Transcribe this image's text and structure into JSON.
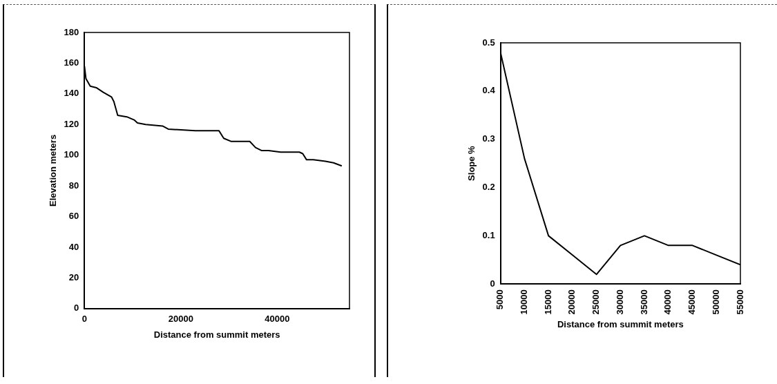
{
  "chart_data": [
    {
      "type": "line",
      "xlabel": "Distance from summit meters",
      "ylabel": "Elevation meters",
      "xlim": [
        0,
        55000
      ],
      "xticks": [
        0,
        20000,
        40000
      ],
      "ylim": [
        0,
        180
      ],
      "yticks": [
        0,
        20,
        40,
        60,
        80,
        100,
        120,
        140,
        160,
        180
      ],
      "grid": false,
      "legend": false,
      "marker": "none",
      "line_style": "solid",
      "series": [
        {
          "color": "#000000",
          "x": [
            0,
            300,
            1200,
            2450,
            3900,
            5600,
            6100,
            6900,
            8800,
            10300,
            11000,
            12700,
            16200,
            17400,
            23000,
            23500,
            27900,
            28900,
            30400,
            34300,
            35500,
            36800,
            38200,
            40700,
            44600,
            45300,
            46100,
            47500,
            50000,
            51700,
            53400
          ],
          "values": [
            158,
            150,
            145,
            144,
            141,
            138,
            135,
            126,
            125,
            123,
            121,
            120,
            119,
            117,
            116,
            116,
            116,
            111,
            109,
            109,
            105,
            103,
            103,
            102,
            102,
            101,
            97,
            97,
            96,
            95,
            93
          ]
        }
      ]
    },
    {
      "type": "line",
      "xlabel": "Distance from summit meters",
      "ylabel": "Slope %",
      "xlim": [
        5000,
        55000
      ],
      "xticks": [
        5000,
        10000,
        15000,
        20000,
        25000,
        30000,
        35000,
        40000,
        45000,
        50000,
        55000
      ],
      "ylim": [
        0,
        0.5
      ],
      "yticks": [
        0,
        0.1,
        0.2,
        0.3,
        0.4,
        0.5
      ],
      "grid": false,
      "legend": false,
      "marker": "none",
      "line_style": "solid",
      "series": [
        {
          "color": "#000000",
          "x": [
            5000,
            10000,
            15000,
            20000,
            25000,
            30000,
            35000,
            40000,
            45000,
            50000,
            55000
          ],
          "values": [
            0.48,
            0.26,
            0.1,
            0.06,
            0.02,
            0.08,
            0.1,
            0.08,
            0.08,
            0.06,
            0.04
          ]
        }
      ]
    }
  ]
}
